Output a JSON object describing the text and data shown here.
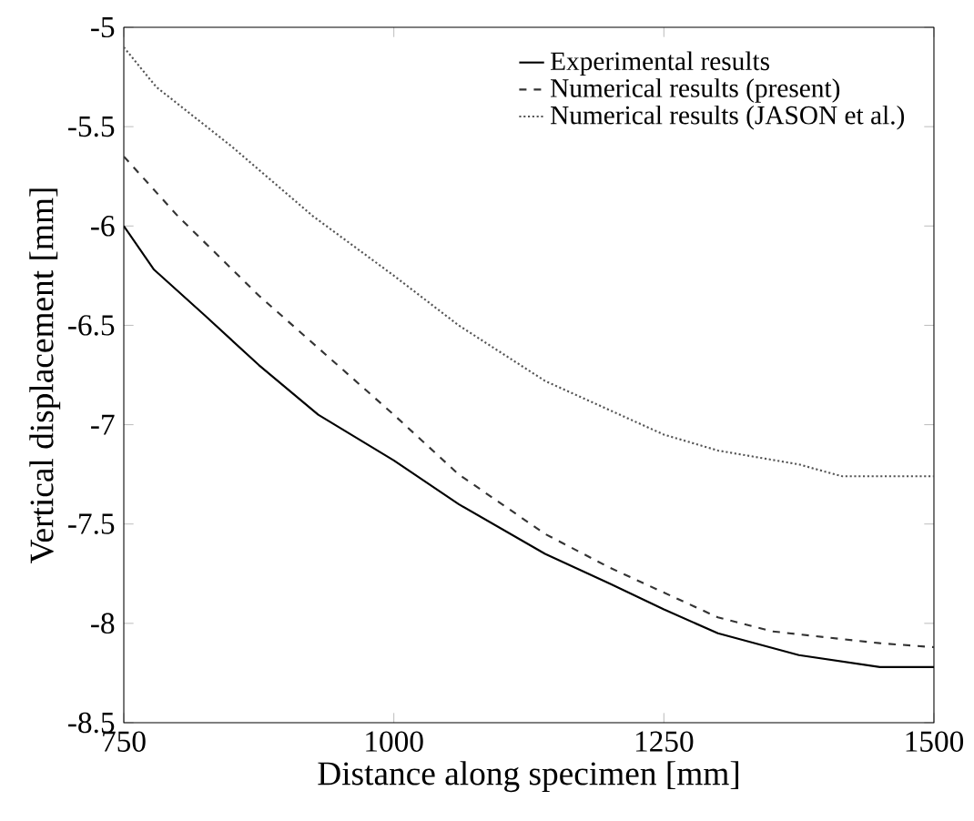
{
  "chart_data": {
    "type": "line",
    "xlabel": "Distance along specimen [mm]",
    "ylabel": "Vertical displacement [mm]",
    "xlim": [
      750,
      1500
    ],
    "ylim": [
      -8.5,
      -5
    ],
    "xticks": [
      750,
      1000,
      1250,
      1500
    ],
    "yticks": [
      -8.5,
      -8,
      -7.5,
      -7,
      -6.5,
      -6,
      -5.5,
      -5
    ],
    "legend": "top right",
    "grid": false,
    "marker": "none",
    "series": [
      {
        "name": "Experimental results",
        "color": "#000000",
        "line_style": "solid",
        "x": [
          750,
          778,
          825,
          875,
          930,
          1000,
          1060,
          1140,
          1200,
          1250,
          1300,
          1375,
          1450,
          1500
        ],
        "values": [
          -6.0,
          -6.22,
          -6.45,
          -6.7,
          -6.95,
          -7.18,
          -7.4,
          -7.65,
          -7.8,
          -7.93,
          -8.05,
          -8.16,
          -8.22,
          -8.22
        ]
      },
      {
        "name": "Numerical results (present)",
        "color": "#333333",
        "line_style": "dashed",
        "x": [
          750,
          800,
          875,
          1000,
          1060,
          1140,
          1200,
          1300,
          1350,
          1450,
          1500
        ],
        "values": [
          -5.65,
          -5.95,
          -6.35,
          -6.95,
          -7.25,
          -7.55,
          -7.72,
          -7.97,
          -8.04,
          -8.1,
          -8.12
        ]
      },
      {
        "name": "Numerical results (JASON et al.)",
        "color": "#555555",
        "line_style": "dotted",
        "x": [
          750,
          780,
          850,
          925,
          1000,
          1060,
          1140,
          1250,
          1300,
          1375,
          1415,
          1500
        ],
        "values": [
          -5.1,
          -5.3,
          -5.6,
          -5.95,
          -6.25,
          -6.5,
          -6.78,
          -7.05,
          -7.13,
          -7.2,
          -7.26,
          -7.26
        ]
      }
    ]
  }
}
